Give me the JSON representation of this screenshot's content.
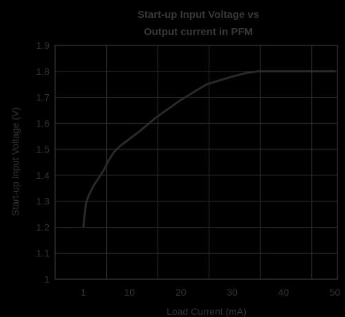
{
  "chart_data": {
    "type": "line",
    "title_lines": [
      "Start-up Input Voltage vs",
      "Output current in PFM"
    ],
    "xlabel": "Load Current (mA)",
    "ylabel": "Start-up Input Voltage (V)",
    "xlim": [
      -4.5,
      50.5
    ],
    "ylim": [
      1.0,
      1.9
    ],
    "x_ticks": [
      {
        "value": 1,
        "label": "1"
      },
      {
        "value": 10,
        "label": "10"
      },
      {
        "value": 20,
        "label": "20"
      },
      {
        "value": 30,
        "label": "30"
      },
      {
        "value": 40,
        "label": "40"
      },
      {
        "value": 50,
        "label": "50"
      }
    ],
    "y_ticks": [
      {
        "value": 1.0,
        "label": "1"
      },
      {
        "value": 1.1,
        "label": "1.1"
      },
      {
        "value": 1.2,
        "label": "1.2"
      },
      {
        "value": 1.3,
        "label": "1.3"
      },
      {
        "value": 1.4,
        "label": "1.4"
      },
      {
        "value": 1.5,
        "label": "1.5"
      },
      {
        "value": 1.6,
        "label": "1.6"
      },
      {
        "value": 1.7,
        "label": "1.7"
      },
      {
        "value": 1.8,
        "label": "1.8"
      },
      {
        "value": 1.9,
        "label": "1.9"
      }
    ],
    "x_gridlines": [
      5.5,
      15.5,
      25.5,
      35.5,
      45.5
    ],
    "grid": true,
    "series": [
      {
        "x": [
          1,
          1.5,
          2,
          3,
          4,
          5,
          6,
          7,
          8,
          10,
          12,
          15,
          20,
          25,
          30,
          33,
          35,
          40,
          45,
          50
        ],
        "y": [
          1.2,
          1.29,
          1.32,
          1.36,
          1.39,
          1.42,
          1.46,
          1.49,
          1.51,
          1.54,
          1.57,
          1.62,
          1.69,
          1.75,
          1.78,
          1.795,
          1.8,
          1.8,
          1.8,
          1.8
        ]
      }
    ],
    "colors": {
      "background": "#000000",
      "plot_background": "#000000",
      "grid": "#2e2e2e",
      "line": "#2a2a2a",
      "text": "#333333",
      "title": "#383838"
    }
  }
}
